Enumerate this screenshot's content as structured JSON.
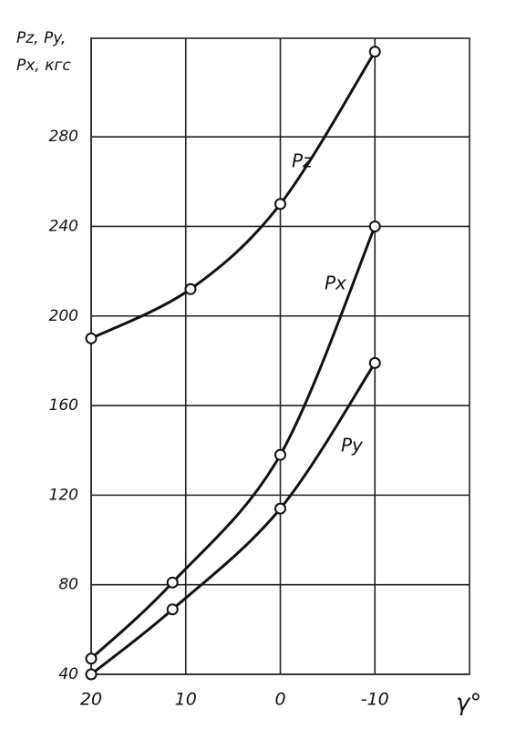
{
  "chart_data": {
    "type": "line",
    "y_label_lines": [
      "Pz, Py,",
      "Px, кгс"
    ],
    "x_label": "γ°",
    "xlim": [
      20,
      -20
    ],
    "xticks": [
      20,
      10,
      0,
      -10
    ],
    "ylim": [
      40,
      324
    ],
    "yticks": [
      40,
      80,
      120,
      160,
      200,
      240,
      280
    ],
    "grid": true,
    "color": "#111111",
    "series": [
      {
        "name": "Pz",
        "x": [
          20,
          9.5,
          0,
          -10
        ],
        "values": [
          190,
          212,
          250,
          318
        ]
      },
      {
        "name": "Px",
        "x": [
          20,
          11.4,
          0,
          -10
        ],
        "values": [
          47,
          81,
          138,
          240
        ]
      },
      {
        "name": "Py",
        "x": [
          20,
          11.4,
          0,
          -10
        ],
        "values": [
          40,
          69,
          114,
          179
        ]
      }
    ]
  }
}
